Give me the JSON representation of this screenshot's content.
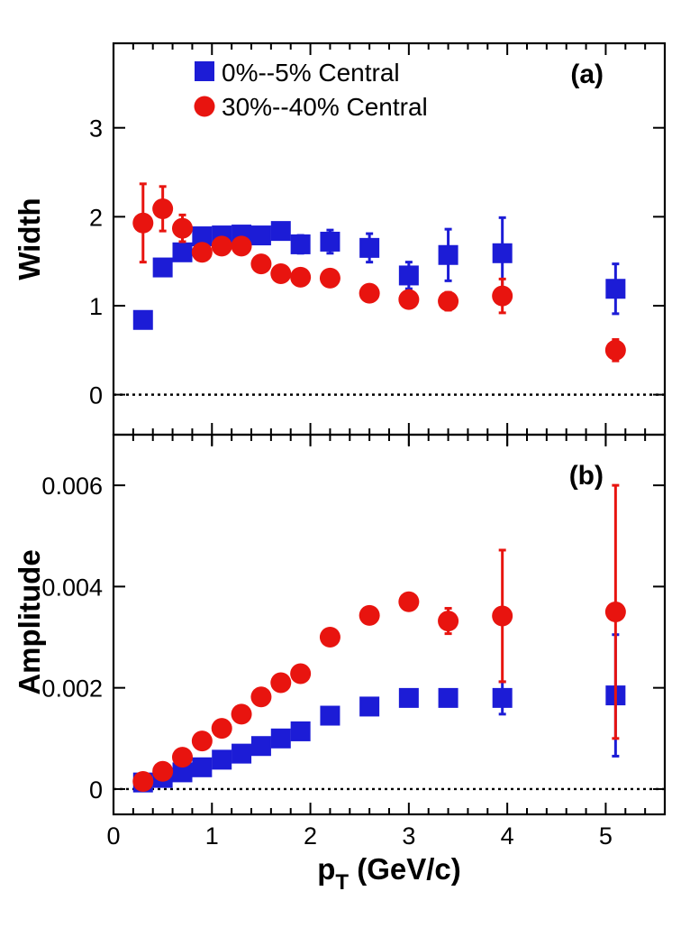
{
  "chart_data": [
    {
      "type": "scatter",
      "panel_label": "(a)",
      "ylabel": "Width",
      "xlabel": "",
      "xlim": [
        0,
        5.6
      ],
      "ylim": [
        -0.45,
        3.95
      ],
      "yticks": [
        0,
        1,
        2,
        3
      ],
      "ytick_labels": [
        "0",
        "1",
        "2",
        "3"
      ],
      "zero_line": true,
      "legend": {
        "position": "top-left"
      },
      "series": [
        {
          "name": "0%--5% Central",
          "marker": "square",
          "color": "#1c1cd6",
          "points": [
            {
              "x": 0.3,
              "y": 0.84,
              "err": 0
            },
            {
              "x": 0.5,
              "y": 1.43,
              "err": 0
            },
            {
              "x": 0.7,
              "y": 1.6,
              "err": 0
            },
            {
              "x": 0.9,
              "y": 1.78,
              "err": 0
            },
            {
              "x": 1.1,
              "y": 1.79,
              "err": 0
            },
            {
              "x": 1.3,
              "y": 1.8,
              "err": 0
            },
            {
              "x": 1.5,
              "y": 1.79,
              "err": 0.06
            },
            {
              "x": 1.7,
              "y": 1.84,
              "err": 0.09
            },
            {
              "x": 1.9,
              "y": 1.69,
              "err": 0.1
            },
            {
              "x": 2.2,
              "y": 1.72,
              "err": 0.13
            },
            {
              "x": 2.6,
              "y": 1.65,
              "err": 0.16
            },
            {
              "x": 3.0,
              "y": 1.34,
              "err": 0.15
            },
            {
              "x": 3.4,
              "y": 1.57,
              "err": 0.29
            },
            {
              "x": 3.95,
              "y": 1.59,
              "err": 0.4
            },
            {
              "x": 5.1,
              "y": 1.19,
              "err": 0.28
            }
          ]
        },
        {
          "name": "30%--40% Central",
          "marker": "circle",
          "color": "#e8140f",
          "points": [
            {
              "x": 0.3,
              "y": 1.93,
              "err": 0.44
            },
            {
              "x": 0.5,
              "y": 2.09,
              "err": 0.25
            },
            {
              "x": 0.7,
              "y": 1.87,
              "err": 0.15
            },
            {
              "x": 0.9,
              "y": 1.6,
              "err": 0
            },
            {
              "x": 1.1,
              "y": 1.67,
              "err": 0
            },
            {
              "x": 1.3,
              "y": 1.67,
              "err": 0
            },
            {
              "x": 1.5,
              "y": 1.47,
              "err": 0
            },
            {
              "x": 1.7,
              "y": 1.36,
              "err": 0
            },
            {
              "x": 1.9,
              "y": 1.32,
              "err": 0
            },
            {
              "x": 2.2,
              "y": 1.31,
              "err": 0
            },
            {
              "x": 2.6,
              "y": 1.14,
              "err": 0
            },
            {
              "x": 3.0,
              "y": 1.07,
              "err": 0
            },
            {
              "x": 3.4,
              "y": 1.05,
              "err": 0.1
            },
            {
              "x": 3.95,
              "y": 1.11,
              "err": 0.19
            },
            {
              "x": 5.1,
              "y": 0.5,
              "err": 0.12
            }
          ]
        }
      ]
    },
    {
      "type": "scatter",
      "panel_label": "(b)",
      "ylabel": "Amplitude",
      "xlabel": "p_T (GeV/c)",
      "xlabel_main": "p",
      "xlabel_sub": "T",
      "xlabel_rest": " (GeV/c)",
      "xlim": [
        0,
        5.6
      ],
      "ylim": [
        -0.0005,
        0.007
      ],
      "xticks": [
        0,
        1,
        2,
        3,
        4,
        5
      ],
      "xtick_labels": [
        "0",
        "1",
        "2",
        "3",
        "4",
        "5"
      ],
      "yticks": [
        0,
        0.002,
        0.004,
        0.006
      ],
      "ytick_labels": [
        "0",
        "0.002",
        "0.004",
        "0.006"
      ],
      "zero_line": true,
      "series": [
        {
          "name": "0%--5% Central",
          "marker": "square",
          "color": "#1c1cd6",
          "points": [
            {
              "x": 0.3,
              "y": 0.00013,
              "err": 0
            },
            {
              "x": 0.5,
              "y": 0.00022,
              "err": 0
            },
            {
              "x": 0.7,
              "y": 0.00033,
              "err": 0
            },
            {
              "x": 0.9,
              "y": 0.00043,
              "err": 0
            },
            {
              "x": 1.1,
              "y": 0.00058,
              "err": 0
            },
            {
              "x": 1.3,
              "y": 0.0007,
              "err": 0
            },
            {
              "x": 1.5,
              "y": 0.00085,
              "err": 0
            },
            {
              "x": 1.7,
              "y": 0.001,
              "err": 0
            },
            {
              "x": 1.9,
              "y": 0.00114,
              "err": 0
            },
            {
              "x": 2.2,
              "y": 0.00145,
              "err": 0
            },
            {
              "x": 2.6,
              "y": 0.00163,
              "err": 0
            },
            {
              "x": 3.0,
              "y": 0.0018,
              "err": 0
            },
            {
              "x": 3.4,
              "y": 0.0018,
              "err": 0
            },
            {
              "x": 3.95,
              "y": 0.0018,
              "err": 0.00032
            },
            {
              "x": 5.1,
              "y": 0.00185,
              "err": 0.0012
            }
          ]
        },
        {
          "name": "30%--40% Central",
          "marker": "circle",
          "color": "#e8140f",
          "points": [
            {
              "x": 0.3,
              "y": 0.00015,
              "err": 0
            },
            {
              "x": 0.5,
              "y": 0.00035,
              "err": 0
            },
            {
              "x": 0.7,
              "y": 0.00063,
              "err": 0
            },
            {
              "x": 0.9,
              "y": 0.00095,
              "err": 0
            },
            {
              "x": 1.1,
              "y": 0.0012,
              "err": 0
            },
            {
              "x": 1.3,
              "y": 0.00148,
              "err": 0
            },
            {
              "x": 1.5,
              "y": 0.00182,
              "err": 0
            },
            {
              "x": 1.7,
              "y": 0.0021,
              "err": 0
            },
            {
              "x": 1.9,
              "y": 0.00228,
              "err": 0
            },
            {
              "x": 2.2,
              "y": 0.003,
              "err": 0
            },
            {
              "x": 2.6,
              "y": 0.00343,
              "err": 0
            },
            {
              "x": 3.0,
              "y": 0.0037,
              "err": 0.00016
            },
            {
              "x": 3.4,
              "y": 0.00332,
              "err": 0.00025
            },
            {
              "x": 3.95,
              "y": 0.00342,
              "err": 0.0013
            },
            {
              "x": 5.1,
              "y": 0.0035,
              "err": 0.0025
            }
          ]
        }
      ]
    }
  ]
}
